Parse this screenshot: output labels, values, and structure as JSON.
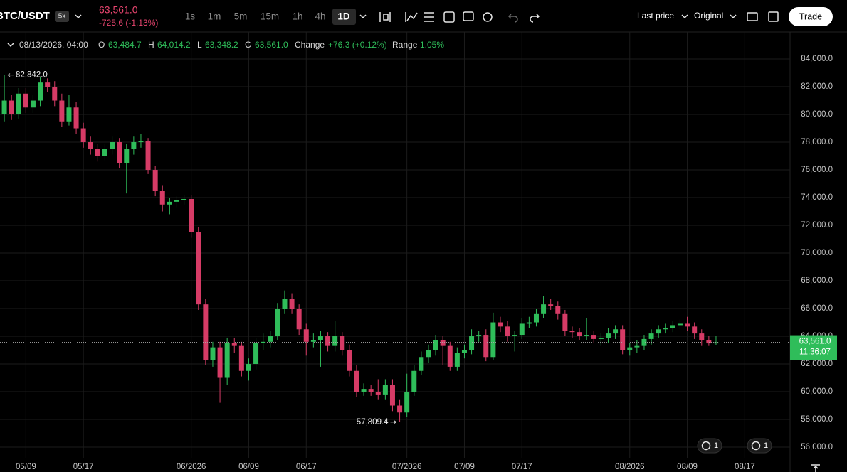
{
  "header": {
    "symbol": "BTC/USDT",
    "leverage": "5x",
    "price": "63,561.0",
    "change": "-725.6 (-1.13%)",
    "timeframes": [
      "1s",
      "1m",
      "5m",
      "15m",
      "1h",
      "4h",
      "1D"
    ],
    "price_type": "Last price",
    "view": "Original",
    "trade": "Trade"
  },
  "legend": {
    "time": "08/13/2026, 04:00",
    "o_label": "O",
    "o": "63,484.7",
    "h_label": "H",
    "h": "64,014.2",
    "l_label": "L",
    "l": "63,348.2",
    "c_label": "C",
    "c": "63,561.0",
    "change_label": "Change",
    "change": "+76.3 (+0.12%)",
    "range_label": "Range",
    "range": "1.05%"
  },
  "badges": [
    "1",
    "1"
  ],
  "chart_data": {
    "type": "candlestick",
    "up_color": "#2fbd5a",
    "down_color": "#d63b66",
    "grid": true,
    "ylim": [
      55180,
      85950
    ],
    "xlim": [
      -0.6,
      109.3
    ],
    "yticks": [
      {
        "value": 56000,
        "label": "56,000.0"
      },
      {
        "value": 58000,
        "label": "58,000.0"
      },
      {
        "value": 60000,
        "label": "60,000.0"
      },
      {
        "value": 62000,
        "label": "62,000.0"
      },
      {
        "value": 64000,
        "label": "64,000.0"
      },
      {
        "value": 66000,
        "label": "66,000.0"
      },
      {
        "value": 68000,
        "label": "68,000.0"
      },
      {
        "value": 70000,
        "label": "70,000.0"
      },
      {
        "value": 72000,
        "label": "72,000.0"
      },
      {
        "value": 74000,
        "label": "74,000.0"
      },
      {
        "value": 76000,
        "label": "76,000.0"
      },
      {
        "value": 78000,
        "label": "78,000.0"
      },
      {
        "value": 80000,
        "label": "80,000.0"
      },
      {
        "value": 82000,
        "label": "82,000.0"
      },
      {
        "value": 84000,
        "label": "84,000.0"
      }
    ],
    "xticks": [
      {
        "value": 3,
        "label": "05/09"
      },
      {
        "value": 11,
        "label": "05/17"
      },
      {
        "value": 26,
        "label": "06/2026"
      },
      {
        "value": 34,
        "label": "06/09"
      },
      {
        "value": 42,
        "label": "06/17"
      },
      {
        "value": 56,
        "label": "07/2026"
      },
      {
        "value": 64,
        "label": "07/09"
      },
      {
        "value": 72,
        "label": "07/17"
      },
      {
        "value": 87,
        "label": "08/2026"
      },
      {
        "value": 95,
        "label": "08/09"
      },
      {
        "value": 103,
        "label": "08/17"
      }
    ],
    "high_marker": {
      "index": 0,
      "label": "82,842.0"
    },
    "low_marker": {
      "index": 55,
      "label": "57,809.4"
    },
    "last_price": {
      "label": "63,561.0",
      "countdown": "11:36:07"
    },
    "ohlc": [
      [
        80000,
        82842,
        79500,
        81000
      ],
      [
        81000,
        81400,
        79600,
        80000
      ],
      [
        80000,
        81900,
        79700,
        81500
      ],
      [
        81500,
        81900,
        80100,
        80500
      ],
      [
        80500,
        81400,
        80100,
        81000
      ],
      [
        81000,
        82700,
        80600,
        82300
      ],
      [
        82300,
        82600,
        81600,
        82000
      ],
      [
        82000,
        82400,
        80600,
        81000
      ],
      [
        81000,
        81500,
        79100,
        79500
      ],
      [
        79500,
        81400,
        79200,
        80500
      ],
      [
        80500,
        80900,
        78600,
        79000
      ],
      [
        79000,
        79400,
        77600,
        78000
      ],
      [
        78000,
        78400,
        77100,
        77500
      ],
      [
        77500,
        77900,
        76600,
        77000
      ],
      [
        77000,
        77900,
        76700,
        77500
      ],
      [
        77500,
        78400,
        77100,
        78000
      ],
      [
        78000,
        78300,
        76100,
        76500
      ],
      [
        76500,
        77900,
        74300,
        77500
      ],
      [
        77500,
        78400,
        77100,
        78000
      ],
      [
        78000,
        78600,
        77600,
        78100
      ],
      [
        78100,
        78300,
        75700,
        76000
      ],
      [
        76000,
        76300,
        74100,
        74500
      ],
      [
        74500,
        74900,
        73000,
        73500
      ],
      [
        73500,
        74000,
        72800,
        73700
      ],
      [
        73700,
        74100,
        73300,
        73800
      ],
      [
        73800,
        74200,
        73500,
        73900
      ],
      [
        73900,
        74200,
        71100,
        71500
      ],
      [
        71500,
        71900,
        65900,
        66300
      ],
      [
        66300,
        66700,
        61900,
        62300
      ],
      [
        62300,
        63600,
        61800,
        63200
      ],
      [
        63200,
        63600,
        59200,
        61000
      ],
      [
        61000,
        63900,
        60500,
        63500
      ],
      [
        63500,
        63900,
        62800,
        63300
      ],
      [
        63300,
        63600,
        61100,
        61500
      ],
      [
        61500,
        62400,
        60800,
        62000
      ],
      [
        62000,
        63900,
        61600,
        63500
      ],
      [
        63500,
        64200,
        63000,
        63600
      ],
      [
        63600,
        64400,
        63200,
        64000
      ],
      [
        64000,
        66400,
        63700,
        66000
      ],
      [
        66000,
        67300,
        65600,
        66700
      ],
      [
        66700,
        67100,
        65600,
        66000
      ],
      [
        66000,
        66300,
        64100,
        64500
      ],
      [
        64500,
        64900,
        62600,
        63600
      ],
      [
        63600,
        64200,
        63200,
        63700
      ],
      [
        63700,
        64400,
        61800,
        64000
      ],
      [
        64000,
        64300,
        62900,
        63300
      ],
      [
        63300,
        65100,
        62900,
        64000
      ],
      [
        64000,
        64300,
        62600,
        63000
      ],
      [
        63000,
        63400,
        61100,
        61500
      ],
      [
        61500,
        61900,
        59600,
        60000
      ],
      [
        60000,
        60600,
        59700,
        60200
      ],
      [
        60200,
        60500,
        59700,
        60000
      ],
      [
        60000,
        60900,
        59400,
        59800
      ],
      [
        59800,
        60900,
        59400,
        60500
      ],
      [
        60500,
        60900,
        58600,
        59000
      ],
      [
        59000,
        59400,
        57809.4,
        58500
      ],
      [
        58500,
        61300,
        58200,
        60000
      ],
      [
        60000,
        61900,
        59700,
        61500
      ],
      [
        61500,
        62900,
        61200,
        62500
      ],
      [
        62500,
        63400,
        62100,
        63000
      ],
      [
        63000,
        64100,
        62600,
        63700
      ],
      [
        63700,
        64000,
        61900,
        63300
      ],
      [
        63300,
        63600,
        61500,
        61800
      ],
      [
        61800,
        63200,
        61500,
        62800
      ],
      [
        62800,
        63400,
        62400,
        63000
      ],
      [
        63000,
        64500,
        62700,
        64000
      ],
      [
        64000,
        64400,
        63600,
        64100
      ],
      [
        64100,
        64500,
        62200,
        62500
      ],
      [
        62500,
        65700,
        62300,
        65000
      ],
      [
        65000,
        65400,
        64300,
        64700
      ],
      [
        64700,
        65100,
        63600,
        64000
      ],
      [
        64000,
        64400,
        62900,
        64100
      ],
      [
        64100,
        65300,
        63800,
        64900
      ],
      [
        64900,
        65400,
        64600,
        65000
      ],
      [
        65000,
        66000,
        64700,
        65600
      ],
      [
        65600,
        66900,
        65300,
        66300
      ],
      [
        66300,
        66700,
        65900,
        66200
      ],
      [
        66200,
        66500,
        65200,
        65600
      ],
      [
        65600,
        65900,
        64000,
        64400
      ],
      [
        64400,
        64700,
        63900,
        64300
      ],
      [
        64300,
        64600,
        63700,
        64000
      ],
      [
        64000,
        65300,
        63700,
        64100
      ],
      [
        64100,
        64400,
        63500,
        63800
      ],
      [
        63800,
        64200,
        63300,
        63900
      ],
      [
        63900,
        64600,
        63500,
        64200
      ],
      [
        64200,
        64800,
        63800,
        64500
      ],
      [
        64500,
        64800,
        62700,
        63000
      ],
      [
        63000,
        63500,
        62600,
        63200
      ],
      [
        63200,
        63700,
        62800,
        63300
      ],
      [
        63300,
        64100,
        63000,
        63800
      ],
      [
        63800,
        64500,
        63400,
        64200
      ],
      [
        64200,
        64800,
        63900,
        64500
      ],
      [
        64500,
        64900,
        64200,
        64600
      ],
      [
        64600,
        65100,
        64300,
        64800
      ],
      [
        64800,
        65200,
        64500,
        64900
      ],
      [
        64900,
        65400,
        64400,
        64700
      ],
      [
        64700,
        65000,
        63800,
        64200
      ],
      [
        64200,
        64500,
        63300,
        63700
      ],
      [
        63700,
        64000,
        63300,
        63484.7
      ],
      [
        63484.7,
        64014.2,
        63348.2,
        63561
      ]
    ]
  }
}
